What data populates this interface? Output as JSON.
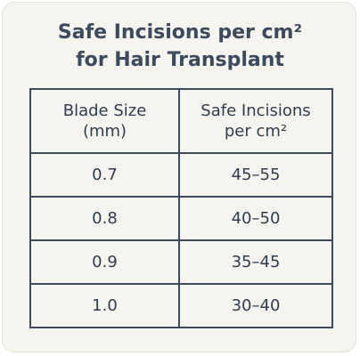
{
  "header": {
    "title": [
      "Safe Incisions per cm²",
      "for Hair Transplant"
    ]
  },
  "table": {
    "columns": [
      "Blade Size (mm)",
      "Safe Incisions per cm²"
    ],
    "rows": [
      [
        "0.7",
        "45–55"
      ],
      [
        "0.8",
        "40–50"
      ],
      [
        "0.9",
        "35–45"
      ],
      [
        "1.0",
        "30–40"
      ]
    ]
  }
}
